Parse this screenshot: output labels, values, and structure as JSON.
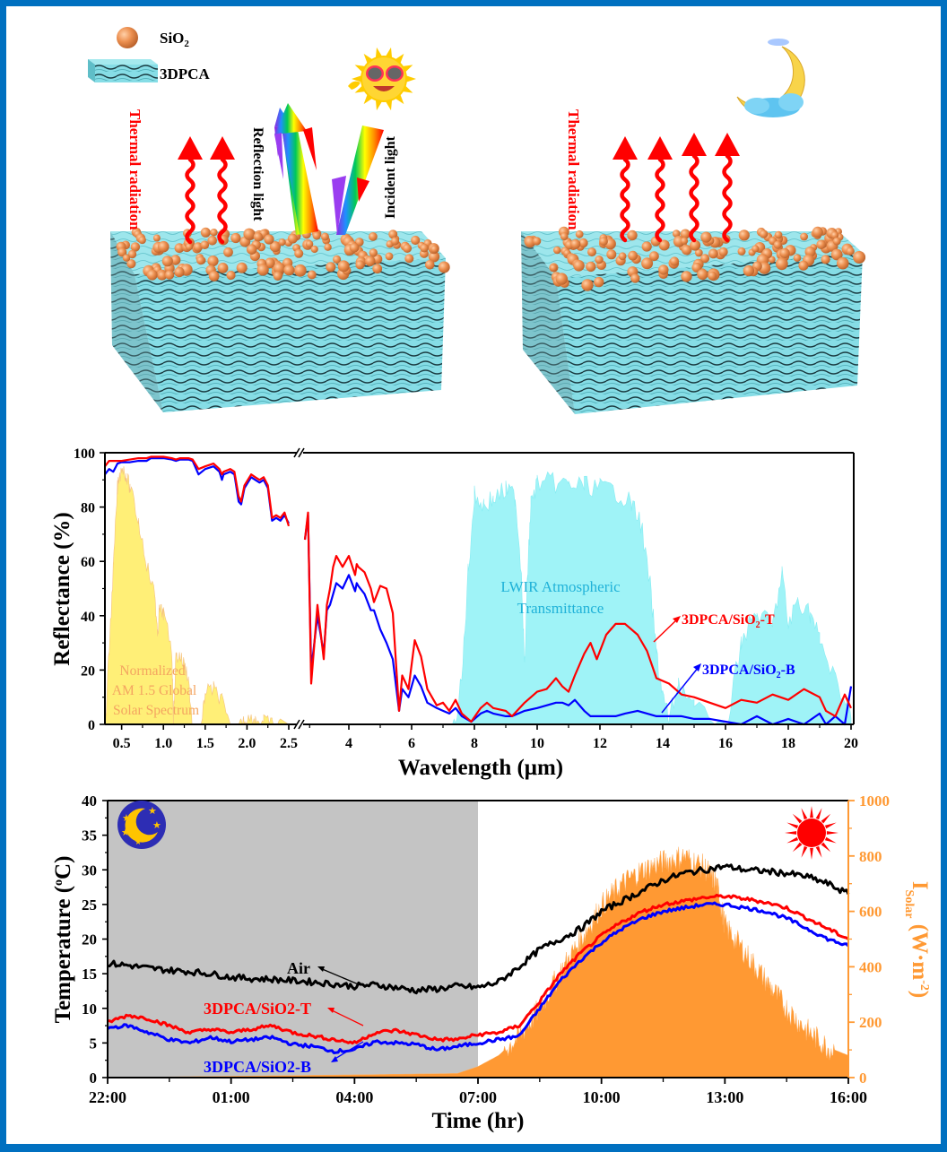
{
  "colors": {
    "frame": "#0070c0",
    "series_T": "#ff0000",
    "series_B": "#0000ff",
    "air": "#000000",
    "solar_spectrum": "#ffef70",
    "lwir": "#7ff0f5",
    "solar_irradiance": "#ff9933",
    "night_shade": "#c4c4c4",
    "particle": "#e8894a",
    "aerogel": "#7fd6e0",
    "thermal_arrow": "#ff0000"
  },
  "diagram": {
    "legend": [
      {
        "icon": "sio2-sphere-icon",
        "label": "SiO",
        "sub": "2"
      },
      {
        "icon": "3dpca-block-icon",
        "label": "3DPCA"
      }
    ],
    "day_panel": {
      "icon": "sunglasses-sun-icon",
      "thermal_label": "Thermal radiation",
      "reflection_label": "Reflection light",
      "incident_label": "Incident light",
      "thermal_arrow_count": 2
    },
    "night_panel": {
      "icon": "sleeping-moon-icon",
      "thermal_label": "Thermal radiation",
      "thermal_arrow_count": 4
    }
  },
  "chart_data": [
    {
      "type": "line",
      "title": "",
      "xlabel": "Wavelength (μm)",
      "ylabel": "Reflectance (%)",
      "ylim": [
        0,
        100
      ],
      "yticks": [
        "0",
        "20",
        "40",
        "60",
        "80",
        "100"
      ],
      "x_axis_break": {
        "left_range": [
          0.3,
          2.5
        ],
        "right_range": [
          2.6,
          20
        ]
      },
      "xticks_left": [
        "0.5",
        "1.0",
        "1.5",
        "2.0",
        "2.5"
      ],
      "xticks_right": [
        "4",
        "6",
        "8",
        "10",
        "12",
        "14",
        "16",
        "18",
        "20"
      ],
      "annotations": {
        "solar": [
          "Normalized",
          "AM 1.5 Global",
          "Solar Spectrum"
        ],
        "lwir": [
          "LWIR Atmospheric",
          "Transmittance"
        ],
        "label_T": {
          "text": "3DPCA/SiO",
          "sub": "2",
          "suffix": "-T"
        },
        "label_B": {
          "text": "3DPCA/SiO",
          "sub": "2",
          "suffix": "-B"
        }
      },
      "series": [
        {
          "name": "3DPCA/SiO2-T",
          "x": [
            0.3,
            0.35,
            0.4,
            0.45,
            0.5,
            0.6,
            0.7,
            0.8,
            0.85,
            0.9,
            1.0,
            1.1,
            1.15,
            1.2,
            1.3,
            1.35,
            1.42,
            1.5,
            1.6,
            1.67,
            1.7,
            1.72,
            1.8,
            1.85,
            1.9,
            1.93,
            1.97,
            2.05,
            2.1,
            2.15,
            2.2,
            2.25,
            2.3,
            2.35,
            2.4,
            2.45,
            2.5,
            2.6,
            2.7,
            2.8,
            3.0,
            3.2,
            3.3,
            3.4,
            3.5,
            3.6,
            3.8,
            4.0,
            4.2,
            4.25,
            4.3,
            4.5,
            4.7,
            4.8,
            5.0,
            5.2,
            5.4,
            5.6,
            5.7,
            5.9,
            6.1,
            6.3,
            6.5,
            6.8,
            7.0,
            7.2,
            7.4,
            7.6,
            7.9,
            8.2,
            8.4,
            8.6,
            9.0,
            9.2,
            9.6,
            10.0,
            10.3,
            10.6,
            10.8,
            11.0,
            11.2,
            11.5,
            11.7,
            11.9,
            12.2,
            12.5,
            12.8,
            13.2,
            13.5,
            13.8,
            14.2,
            14.6,
            15.0,
            15.5,
            16.0,
            16.5,
            17.0,
            17.5,
            18.0,
            18.5,
            19.0,
            19.2,
            19.5,
            19.8,
            20.0
          ],
          "values": [
            95,
            97,
            97,
            97,
            97,
            97.5,
            98,
            98,
            98.5,
            98.5,
            98.5,
            98,
            97.5,
            98,
            98,
            97.5,
            94,
            95,
            96,
            94,
            92,
            93,
            94,
            93,
            84,
            82,
            88,
            92,
            91,
            90,
            91,
            88,
            76,
            77,
            76,
            78,
            73,
            68,
            78,
            15,
            44,
            24,
            44,
            50,
            58,
            62,
            58,
            62,
            55,
            59,
            58,
            56,
            50,
            45,
            51,
            50,
            41,
            5,
            18,
            13,
            31,
            25,
            13,
            7,
            8,
            5,
            9,
            4,
            1,
            6,
            8,
            6,
            5,
            3,
            8,
            12,
            13,
            17,
            14,
            12,
            18,
            26,
            30,
            24,
            33,
            37,
            37,
            33,
            27,
            17,
            15,
            11,
            10,
            8,
            6,
            9,
            8,
            11,
            9,
            13,
            10,
            5,
            3,
            11,
            6
          ],
          "y_units": "%"
        },
        {
          "name": "3DPCA/SiO2-B",
          "x": [
            0.3,
            0.35,
            0.4,
            0.45,
            0.5,
            0.6,
            0.7,
            0.8,
            0.85,
            0.9,
            1.0,
            1.1,
            1.15,
            1.2,
            1.3,
            1.35,
            1.42,
            1.5,
            1.6,
            1.67,
            1.7,
            1.72,
            1.8,
            1.85,
            1.9,
            1.93,
            1.97,
            2.05,
            2.1,
            2.15,
            2.2,
            2.25,
            2.3,
            2.35,
            2.4,
            2.45,
            2.5,
            2.6,
            2.7,
            2.8,
            3.0,
            3.2,
            3.3,
            3.4,
            3.5,
            3.6,
            3.8,
            4.0,
            4.2,
            4.25,
            4.3,
            4.5,
            4.7,
            4.8,
            5.0,
            5.2,
            5.4,
            5.6,
            5.7,
            5.9,
            6.1,
            6.3,
            6.5,
            6.8,
            7.0,
            7.2,
            7.4,
            7.6,
            7.9,
            8.2,
            8.4,
            8.6,
            9.0,
            9.2,
            9.6,
            10.0,
            10.3,
            10.6,
            10.8,
            11.0,
            11.2,
            11.5,
            11.7,
            11.9,
            12.2,
            12.5,
            12.8,
            13.2,
            13.5,
            13.8,
            14.2,
            14.6,
            15.0,
            15.5,
            16.0,
            16.5,
            17.0,
            17.5,
            18.0,
            18.5,
            19.0,
            19.2,
            19.5,
            19.8,
            20.0
          ],
          "values": [
            92,
            94,
            93,
            96,
            96.5,
            96.5,
            97,
            97,
            98,
            98,
            98,
            97.5,
            97,
            97.5,
            97.5,
            97,
            92,
            94,
            95,
            93,
            90,
            92,
            93,
            92,
            82,
            81,
            87,
            91,
            90,
            89,
            90,
            87,
            75,
            76,
            75,
            77,
            74,
            68,
            77,
            20,
            40,
            26,
            42,
            44,
            48,
            52,
            50,
            55,
            49,
            52,
            51,
            48,
            42,
            42,
            35,
            30,
            24,
            5,
            13,
            10,
            18,
            14,
            8,
            6,
            5,
            4,
            6,
            3,
            1,
            4,
            5,
            4,
            3,
            3,
            5,
            6,
            7,
            8,
            8,
            7,
            9,
            5,
            3,
            3,
            3,
            3,
            4,
            5,
            4,
            3,
            3,
            3,
            2,
            2,
            1,
            0,
            3,
            0,
            2,
            0,
            4,
            0,
            3,
            0,
            14
          ],
          "y_units": "%"
        },
        {
          "name": "Normalized AM 1.5 Global Solar Spectrum",
          "x": [
            0.3,
            0.35,
            0.4,
            0.45,
            0.5,
            0.55,
            0.6,
            0.7,
            0.8,
            0.9,
            0.93,
            0.95,
            1.0,
            1.1,
            1.12,
            1.15,
            1.2,
            1.25,
            1.3,
            1.35,
            1.4,
            1.45,
            1.5,
            1.6,
            1.7,
            1.8,
            1.82,
            1.9,
            1.95,
            2.0,
            2.1,
            2.2,
            2.3,
            2.4,
            2.5
          ],
          "values": [
            0,
            30,
            60,
            90,
            98,
            95,
            90,
            78,
            62,
            50,
            35,
            45,
            44,
            30,
            5,
            28,
            28,
            25,
            20,
            0,
            0,
            0,
            15,
            16,
            12,
            0,
            0,
            0,
            4,
            5,
            5,
            4,
            3,
            2,
            0
          ],
          "y_units": "normalized %"
        },
        {
          "name": "LWIR Atmospheric Transmittance",
          "x": [
            7.3,
            7.6,
            7.8,
            8.0,
            8.3,
            8.6,
            9.0,
            9.3,
            9.5,
            9.6,
            9.7,
            9.8,
            10.0,
            10.5,
            11.0,
            11.5,
            12.0,
            12.5,
            13.0,
            13.3,
            13.6,
            13.8,
            14.0,
            14.2,
            14.5,
            15.0,
            16.0,
            16.5,
            17.0,
            17.5,
            17.8,
            18.0,
            18.3,
            18.7,
            19.0,
            19.5,
            20.0
          ],
          "values": [
            0,
            20,
            60,
            88,
            85,
            87,
            90,
            88,
            60,
            25,
            60,
            85,
            93,
            93,
            92,
            92,
            91,
            90,
            85,
            78,
            55,
            30,
            15,
            5,
            20,
            10,
            0,
            35,
            45,
            40,
            60,
            40,
            50,
            45,
            35,
            20,
            10
          ],
          "y_units": "%"
        }
      ]
    },
    {
      "type": "line",
      "title": "",
      "xlabel": "Time (hr)",
      "ylabel": "Temperature (",
      "ylabel_sup": "o",
      "ylabel_suffix": "C)",
      "ylim": [
        0,
        40
      ],
      "yticks": [
        "0",
        "5",
        "10",
        "15",
        "20",
        "25",
        "30",
        "35",
        "40"
      ],
      "y2label": "I",
      "y2label_sub": "Solar",
      "y2label_units": " (W·m",
      "y2label_sup": "-2",
      "y2label_close": ")",
      "y2lim": [
        0,
        1000
      ],
      "y2ticks": [
        "0",
        "200",
        "400",
        "600",
        "800",
        "1000"
      ],
      "xticks": [
        "22:00",
        "01:00",
        "04:00",
        "07:00",
        "10:00",
        "13:00",
        "16:00"
      ],
      "x_hours_elapsed_range": [
        0,
        18
      ],
      "night_region_hours": [
        0,
        9
      ],
      "annotations": {
        "air": "Air",
        "label_T": "3DPCA/SiO2-T",
        "label_B": "3DPCA/SiO2-B",
        "night_icon": "moon-stars-icon",
        "day_icon": "sun-icon"
      },
      "series": [
        {
          "name": "Air",
          "x": [
            0,
            0.5,
            1,
            1.5,
            2,
            2.5,
            3,
            3.5,
            4,
            4.5,
            5,
            5.5,
            6,
            6.5,
            7,
            7.5,
            8,
            8.5,
            9,
            9.5,
            10,
            10.5,
            11,
            11.5,
            12,
            12.5,
            13,
            13.5,
            14,
            14.5,
            15,
            15.5,
            16,
            16.5,
            17,
            17.5,
            18
          ],
          "values": [
            16.5,
            16.2,
            15.8,
            15.5,
            15.3,
            15.0,
            14.5,
            14.3,
            14.2,
            14.0,
            13.8,
            13.5,
            13.2,
            13.4,
            13.0,
            12.6,
            12.8,
            13.2,
            13.0,
            13.8,
            16.0,
            18.5,
            20.0,
            21.5,
            24.0,
            25.5,
            27.0,
            28.5,
            29.5,
            30.0,
            30.5,
            30.0,
            29.8,
            29.5,
            29.0,
            28.0,
            26.5
          ],
          "y_units": "°C"
        },
        {
          "name": "3DPCA/SiO2-T",
          "x": [
            0,
            0.5,
            1,
            1.5,
            2,
            2.5,
            3,
            3.5,
            4,
            4.5,
            5,
            5.5,
            6,
            6.5,
            7,
            7.5,
            8,
            8.5,
            9,
            9.5,
            10,
            10.5,
            11,
            11.5,
            12,
            12.5,
            13,
            13.5,
            14,
            14.5,
            15,
            15.5,
            16,
            16.5,
            17,
            17.5,
            18
          ],
          "values": [
            8.0,
            9.0,
            8.5,
            7.5,
            6.5,
            7.0,
            6.5,
            7.0,
            7.5,
            6.5,
            6.0,
            5.5,
            5.0,
            6.5,
            6.8,
            6.2,
            5.5,
            5.5,
            6.2,
            6.5,
            7.5,
            11.0,
            15.0,
            18.0,
            20.5,
            22.5,
            24.0,
            25.0,
            25.5,
            26.0,
            26.2,
            25.8,
            25.3,
            24.5,
            23.0,
            21.5,
            20.0
          ],
          "y_units": "°C"
        },
        {
          "name": "3DPCA/SiO2-B",
          "x": [
            0,
            0.5,
            1,
            1.5,
            2,
            2.5,
            3,
            3.5,
            4,
            4.5,
            5,
            5.5,
            6,
            6.5,
            7,
            7.5,
            8,
            8.5,
            9,
            9.5,
            10,
            10.5,
            11,
            11.5,
            12,
            12.5,
            13,
            13.5,
            14,
            14.5,
            15,
            15.5,
            16,
            16.5,
            17,
            17.5,
            18
          ],
          "values": [
            7.2,
            7.5,
            6.5,
            5.5,
            5.0,
            5.8,
            5.2,
            5.5,
            5.8,
            4.8,
            4.5,
            3.8,
            4.0,
            5.2,
            5.0,
            4.8,
            4.0,
            4.5,
            5.0,
            5.5,
            6.0,
            10.0,
            14.0,
            17.0,
            19.5,
            21.5,
            23.0,
            24.0,
            24.5,
            25.0,
            25.0,
            24.5,
            24.0,
            23.0,
            21.5,
            20.0,
            19.0
          ],
          "y_units": "°C"
        },
        {
          "name": "I_Solar",
          "x": [
            0,
            3,
            6,
            8.5,
            9,
            9.5,
            10,
            10.5,
            11,
            11.5,
            12,
            12.5,
            13,
            13.5,
            14,
            14.5,
            14.8,
            15,
            15.5,
            16,
            16.5,
            17,
            17.5,
            18
          ],
          "values": [
            0,
            5,
            10,
            15,
            40,
            80,
            150,
            250,
            380,
            500,
            620,
            700,
            750,
            780,
            800,
            760,
            700,
            550,
            450,
            350,
            250,
            170,
            110,
            80
          ],
          "y_units": "W/m²"
        }
      ]
    }
  ]
}
